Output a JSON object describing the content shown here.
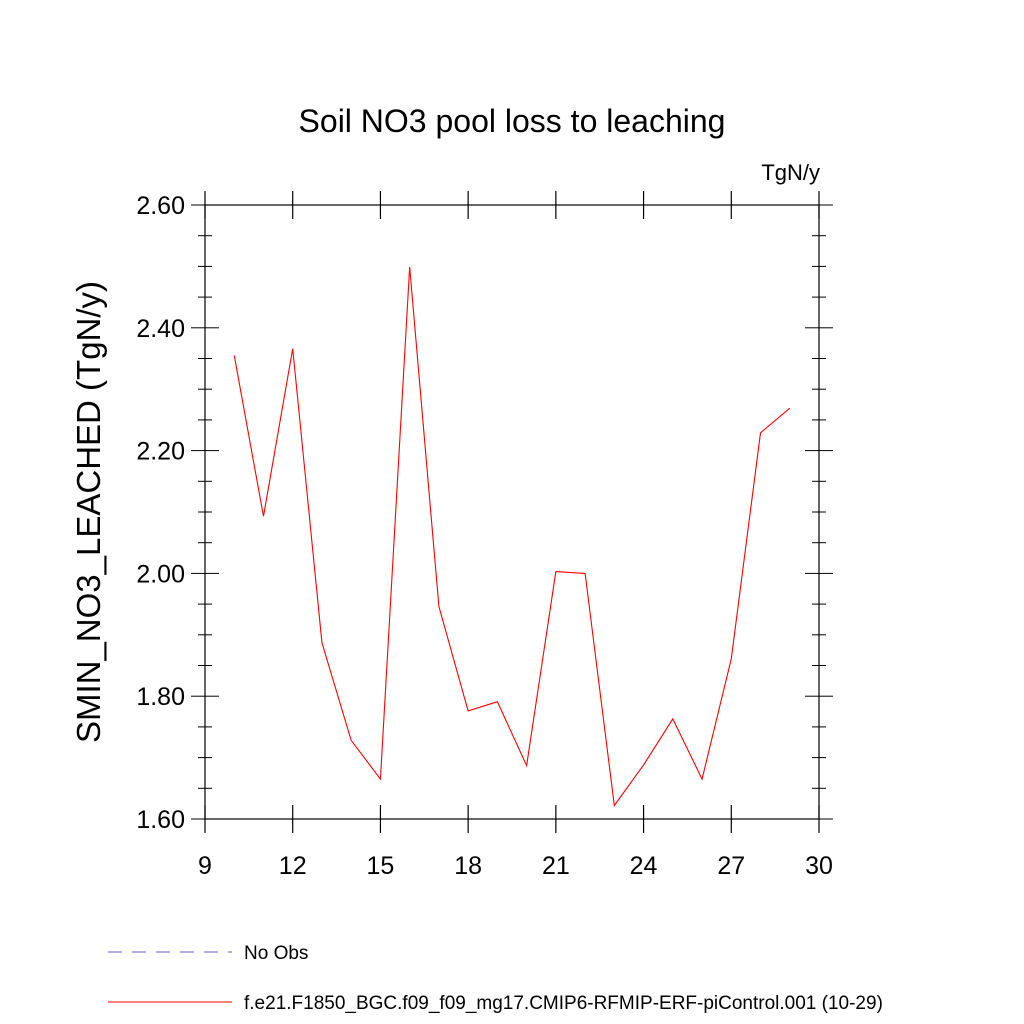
{
  "chart_data": {
    "type": "line",
    "title": "Soil NO3 pool loss to leaching",
    "units_label": "TgN/y",
    "ylabel": "SMIN_NO3_LEACHED  (TgN/y)",
    "xlabel": "",
    "xlim": [
      9,
      30
    ],
    "ylim": [
      1.6,
      2.6
    ],
    "xticks": [
      9,
      12,
      15,
      18,
      21,
      24,
      27,
      30
    ],
    "yticks": [
      1.6,
      1.8,
      2.0,
      2.2,
      2.4,
      2.6
    ],
    "ytick_labels": [
      "1.60",
      "1.80",
      "2.00",
      "2.20",
      "2.40",
      "2.60"
    ],
    "grid": false,
    "legend_position": "bottom",
    "x": [
      10,
      11,
      12,
      13,
      14,
      15,
      16,
      17,
      18,
      19,
      20,
      21,
      22,
      23,
      24,
      25,
      26,
      27,
      28,
      29
    ],
    "series": [
      {
        "name": "f.e21.F1850_BGC.f09_f09_mg17.CMIP6-RFMIP-ERF-piControl.001 (10-29)",
        "color": "#ff0000",
        "style": "solid",
        "values": [
          2.355,
          2.093,
          2.366,
          1.887,
          1.728,
          1.665,
          2.499,
          1.946,
          1.776,
          1.791,
          1.687,
          2.003,
          2.0,
          1.622,
          1.688,
          1.763,
          1.665,
          1.861,
          2.229,
          2.269
        ]
      }
    ],
    "legend": [
      {
        "label": "No Obs",
        "color": "#6a5acd",
        "style": "dashed"
      },
      {
        "label": "f.e21.F1850_BGC.f09_f09_mg17.CMIP6-RFMIP-ERF-piControl.001 (10-29)",
        "color": "#ff0000",
        "style": "solid"
      }
    ]
  }
}
